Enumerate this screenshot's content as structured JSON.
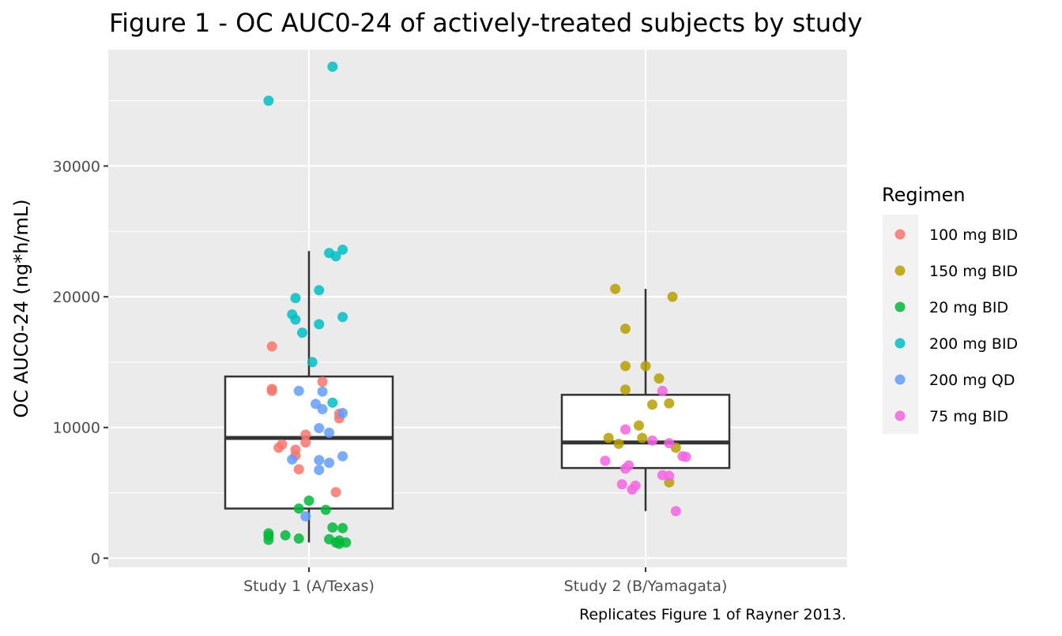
{
  "chart_data": {
    "type": "scatter",
    "subtype": "boxplot-with-jittered-points",
    "title": "Figure 1 - OC AUC0-24 of actively-treated subjects by study",
    "ylabel": "OC AUC0-24 (ng*h/mL)",
    "xlabel": "",
    "caption": "Replicates Figure 1 of Rayner 2013.",
    "categories": [
      "Study 1 (A/Texas)",
      "Study 2 (B/Yamagata)"
    ],
    "y_ticks": [
      "0",
      "10000",
      "20000",
      "30000"
    ],
    "y_tick_values": [
      0,
      10000,
      20000,
      30000
    ],
    "ylim": [
      -700,
      38900
    ],
    "grid": true,
    "panel_background": "#ebebeb",
    "legend": {
      "title": "Regimen",
      "position": "right",
      "entries": [
        {
          "label": "100 mg BID",
          "color": "#F8766D"
        },
        {
          "label": "150 mg BID",
          "color": "#B79F00"
        },
        {
          "label": "20 mg BID",
          "color": "#00BA38"
        },
        {
          "label": "200 mg BID",
          "color": "#00BFC4"
        },
        {
          "label": "200 mg QD",
          "color": "#619CFF"
        },
        {
          "label": "75 mg BID",
          "color": "#F564E3"
        }
      ]
    },
    "boxes": [
      {
        "category": "Study 1 (A/Texas)",
        "whisker_low": 1200,
        "q1": 3800,
        "median": 9200,
        "q3": 13900,
        "whisker_high": 23500
      },
      {
        "category": "Study 2 (B/Yamagata)",
        "whisker_low": 3600,
        "q1": 6900,
        "median": 8850,
        "q3": 12500,
        "whisker_high": 20600
      }
    ],
    "series": [
      {
        "name": "100 mg BID",
        "color": "#F8766D",
        "points": [
          [
            -0.11,
            16200
          ],
          [
            -0.11,
            12950
          ],
          [
            -0.11,
            12800
          ],
          [
            0.04,
            13500
          ],
          [
            0.09,
            11050
          ],
          [
            0.09,
            10700
          ],
          [
            -0.01,
            9450
          ],
          [
            -0.08,
            8700
          ],
          [
            -0.09,
            8450
          ],
          [
            -0.04,
            8300
          ],
          [
            -0.01,
            8850
          ],
          [
            -0.04,
            7850
          ],
          [
            -0.03,
            6800
          ],
          [
            0.08,
            5050
          ]
        ]
      },
      {
        "name": "150 mg BID",
        "color": "#B79F00",
        "points": [
          [
            -0.09,
            20600
          ],
          [
            0.08,
            20000
          ],
          [
            -0.06,
            17550
          ],
          [
            0.0,
            14700
          ],
          [
            -0.06,
            14700
          ],
          [
            0.04,
            13750
          ],
          [
            -0.06,
            12900
          ],
          [
            0.02,
            11750
          ],
          [
            0.07,
            11850
          ],
          [
            -0.02,
            10150
          ],
          [
            -0.11,
            9200
          ],
          [
            -0.08,
            8750
          ],
          [
            -0.01,
            9200
          ],
          [
            0.09,
            8450
          ],
          [
            0.07,
            5800
          ]
        ]
      },
      {
        "name": "20 mg BID",
        "color": "#00BA38",
        "points": [
          [
            0.0,
            4400
          ],
          [
            -0.03,
            3800
          ],
          [
            0.05,
            3700
          ],
          [
            0.07,
            2350
          ],
          [
            0.1,
            2300
          ],
          [
            -0.12,
            1900
          ],
          [
            -0.12,
            1700
          ],
          [
            -0.07,
            1750
          ],
          [
            -0.03,
            1500
          ],
          [
            0.06,
            1450
          ],
          [
            0.09,
            1350
          ],
          [
            -0.12,
            1400
          ],
          [
            0.08,
            1200
          ],
          [
            0.11,
            1200
          ],
          [
            0.09,
            1100
          ]
        ]
      },
      {
        "name": "200 mg BID",
        "color": "#00BFC4",
        "points": [
          [
            0.07,
            37600
          ],
          [
            -0.12,
            35000
          ],
          [
            0.1,
            23600
          ],
          [
            0.06,
            23350
          ],
          [
            0.08,
            23100
          ],
          [
            0.03,
            20500
          ],
          [
            -0.04,
            19900
          ],
          [
            -0.05,
            18650
          ],
          [
            -0.04,
            18250
          ],
          [
            0.1,
            18450
          ],
          [
            0.03,
            17900
          ],
          [
            -0.02,
            17250
          ],
          [
            0.01,
            15000
          ],
          [
            0.07,
            11900
          ]
        ]
      },
      {
        "name": "200 mg QD",
        "color": "#619CFF",
        "points": [
          [
            -0.03,
            12800
          ],
          [
            0.04,
            12750
          ],
          [
            0.02,
            11800
          ],
          [
            0.04,
            11400
          ],
          [
            0.1,
            11100
          ],
          [
            0.03,
            9950
          ],
          [
            0.06,
            9600
          ],
          [
            -0.05,
            7550
          ],
          [
            0.03,
            7500
          ],
          [
            0.1,
            7800
          ],
          [
            0.06,
            7300
          ],
          [
            0.03,
            6750
          ],
          [
            -0.01,
            3200
          ]
        ]
      },
      {
        "name": "75 mg BID",
        "color": "#F564E3",
        "points": [
          [
            0.05,
            12800
          ],
          [
            -0.06,
            9850
          ],
          [
            0.02,
            9000
          ],
          [
            0.07,
            8800
          ],
          [
            -0.12,
            7450
          ],
          [
            -0.05,
            7100
          ],
          [
            -0.06,
            6850
          ],
          [
            0.11,
            7800
          ],
          [
            0.12,
            7750
          ],
          [
            0.05,
            6350
          ],
          [
            0.07,
            6300
          ],
          [
            -0.07,
            5650
          ],
          [
            -0.03,
            5550
          ],
          [
            -0.04,
            5250
          ],
          [
            0.09,
            3600
          ]
        ]
      }
    ]
  }
}
